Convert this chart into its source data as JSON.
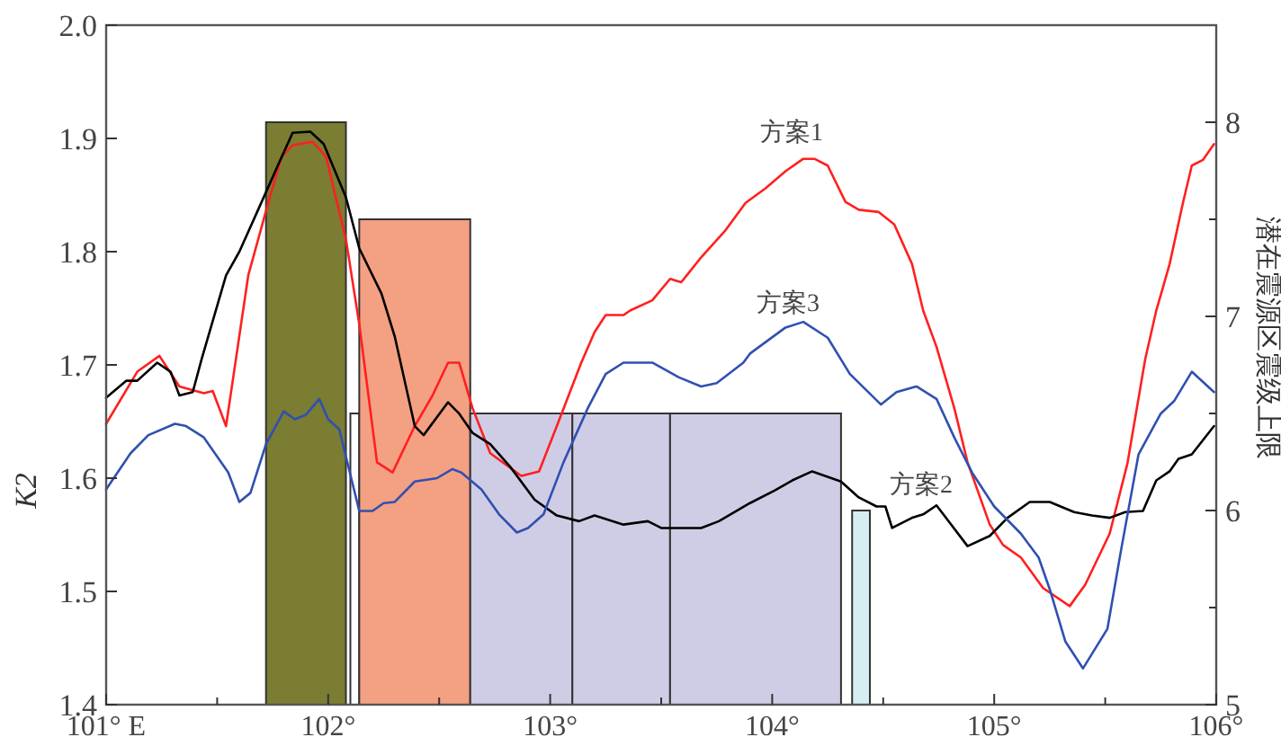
{
  "chart_data": {
    "type": "line",
    "ylabel": "K2",
    "y2label": "潜在震源区震级上限",
    "xlim": [
      101,
      106
    ],
    "xticks": [
      {
        "value": 101,
        "label": "101° E"
      },
      {
        "value": 101.5,
        "label": null
      },
      {
        "value": 102,
        "label": "102°"
      },
      {
        "value": 102.5,
        "label": null
      },
      {
        "value": 103,
        "label": "103°"
      },
      {
        "value": 103.5,
        "label": null
      },
      {
        "value": 104,
        "label": "104°"
      },
      {
        "value": 104.5,
        "label": null
      },
      {
        "value": 105,
        "label": "105°"
      },
      {
        "value": 105.5,
        "label": null
      },
      {
        "value": 106,
        "label": "106°"
      }
    ],
    "ylim": [
      1.4,
      2.0
    ],
    "yticks": [
      {
        "value": 1.4,
        "label": "1.4"
      },
      {
        "value": 1.5,
        "label": "1.5"
      },
      {
        "value": 1.6,
        "label": "1.6"
      },
      {
        "value": 1.7,
        "label": "1.7"
      },
      {
        "value": 1.8,
        "label": "1.8"
      },
      {
        "value": 1.9,
        "label": "1.9"
      },
      {
        "value": 2.0,
        "label": "2.0"
      }
    ],
    "y2lim": [
      5,
      8.5
    ],
    "y2ticks": [
      5,
      {
        "value": 5.5,
        "label": null
      },
      6,
      {
        "value": 6.5,
        "label": null
      },
      7,
      {
        "value": 7.5,
        "label": null
      },
      8
    ],
    "series": [
      {
        "type": "histogram",
        "axis": "y2",
        "bins": [
          101.72,
          102.08,
          102.1,
          102.14,
          102.64,
          103.1,
          103.54,
          104.31,
          104.36,
          104.44
        ],
        "values": [
          8.0,
          null,
          6.5,
          7.5,
          6.5,
          6.5,
          6.5,
          null,
          6.0
        ],
        "colors": [
          "#7a7d32",
          null,
          "#ffffff",
          "#f4a083",
          "#cfcde6",
          "#cfcde6",
          "#cfcde6",
          null,
          "#d6eef2"
        ]
      },
      {
        "name": "方案1",
        "color": "#ff2020",
        "x": [
          101.0,
          101.14,
          101.24,
          101.33,
          101.44,
          101.48,
          101.54,
          101.64,
          101.72,
          101.79,
          101.84,
          101.93,
          101.99,
          102.08,
          102.14,
          102.22,
          102.29,
          102.39,
          102.47,
          102.54,
          102.59,
          102.65,
          102.73,
          102.87,
          102.95,
          103.03,
          103.14,
          103.2,
          103.25,
          103.33,
          103.36,
          103.46,
          103.54,
          103.59,
          103.68,
          103.79,
          103.88,
          103.97,
          104.06,
          104.14,
          104.19,
          104.25,
          104.33,
          104.39,
          104.48,
          104.55,
          104.63,
          104.68,
          104.74,
          104.82,
          104.88,
          104.98,
          105.04,
          105.12,
          105.22,
          105.34,
          105.41,
          105.52,
          105.6,
          105.68,
          105.73,
          105.79,
          105.85,
          105.89,
          105.94,
          105.99
        ],
        "values": [
          1.648,
          1.694,
          1.708,
          1.681,
          1.675,
          1.677,
          1.646,
          1.779,
          1.836,
          1.884,
          1.894,
          1.897,
          1.884,
          1.811,
          1.736,
          1.614,
          1.605,
          1.646,
          1.673,
          1.702,
          1.702,
          1.662,
          1.622,
          1.602,
          1.606,
          1.646,
          1.702,
          1.729,
          1.744,
          1.744,
          1.748,
          1.757,
          1.776,
          1.773,
          1.795,
          1.819,
          1.843,
          1.856,
          1.871,
          1.882,
          1.882,
          1.876,
          1.844,
          1.837,
          1.835,
          1.824,
          1.789,
          1.748,
          1.716,
          1.662,
          1.614,
          1.559,
          1.541,
          1.53,
          1.503,
          1.487,
          1.506,
          1.551,
          1.613,
          1.705,
          1.748,
          1.789,
          1.843,
          1.876,
          1.881,
          1.895
        ]
      },
      {
        "name": "方案2",
        "color": "#000000",
        "x": [
          101.0,
          101.09,
          101.14,
          101.23,
          101.29,
          101.33,
          101.39,
          101.43,
          101.54,
          101.6,
          101.68,
          101.78,
          101.84,
          101.92,
          101.98,
          102.08,
          102.14,
          102.24,
          102.3,
          102.39,
          102.43,
          102.54,
          102.59,
          102.65,
          102.73,
          102.82,
          102.93,
          103.03,
          103.13,
          103.2,
          103.33,
          103.44,
          103.5,
          103.68,
          103.76,
          103.9,
          104.01,
          104.09,
          104.18,
          104.31,
          104.39,
          104.47,
          104.51,
          104.54,
          104.63,
          104.68,
          104.74,
          104.88,
          104.98,
          105.06,
          105.16,
          105.25,
          105.36,
          105.44,
          105.52,
          105.59,
          105.67,
          105.73,
          105.79,
          105.83,
          105.89,
          105.99
        ],
        "values": [
          1.671,
          1.686,
          1.686,
          1.702,
          1.694,
          1.673,
          1.676,
          1.705,
          1.779,
          1.8,
          1.835,
          1.879,
          1.905,
          1.906,
          1.895,
          1.848,
          1.803,
          1.763,
          1.725,
          1.646,
          1.638,
          1.667,
          1.657,
          1.64,
          1.63,
          1.61,
          1.581,
          1.567,
          1.562,
          1.567,
          1.559,
          1.562,
          1.556,
          1.556,
          1.562,
          1.578,
          1.589,
          1.598,
          1.606,
          1.597,
          1.583,
          1.575,
          1.575,
          1.556,
          1.565,
          1.568,
          1.576,
          1.54,
          1.549,
          1.565,
          1.579,
          1.579,
          1.57,
          1.567,
          1.565,
          1.57,
          1.571,
          1.598,
          1.606,
          1.617,
          1.621,
          1.646
        ]
      },
      {
        "name": "方案3",
        "color": "#3050b0",
        "x": [
          101.0,
          101.11,
          101.19,
          101.31,
          101.36,
          101.44,
          101.55,
          101.6,
          101.65,
          101.72,
          101.8,
          101.85,
          101.9,
          101.96,
          102.0,
          102.05,
          102.14,
          102.2,
          102.25,
          102.3,
          102.39,
          102.49,
          102.56,
          102.6,
          102.69,
          102.77,
          102.85,
          102.9,
          102.97,
          103.06,
          103.17,
          103.25,
          103.33,
          103.46,
          103.58,
          103.68,
          103.75,
          103.87,
          103.9,
          104.06,
          104.14,
          104.25,
          104.35,
          104.49,
          104.56,
          104.65,
          104.74,
          104.82,
          104.9,
          105.0,
          105.12,
          105.2,
          105.25,
          105.32,
          105.4,
          105.51,
          105.57,
          105.65,
          105.75,
          105.81,
          105.89,
          105.99
        ],
        "values": [
          1.59,
          1.622,
          1.638,
          1.648,
          1.646,
          1.636,
          1.605,
          1.579,
          1.587,
          1.63,
          1.659,
          1.652,
          1.656,
          1.67,
          1.652,
          1.643,
          1.571,
          1.571,
          1.578,
          1.579,
          1.597,
          1.6,
          1.608,
          1.605,
          1.59,
          1.568,
          1.552,
          1.556,
          1.568,
          1.614,
          1.662,
          1.692,
          1.702,
          1.702,
          1.689,
          1.681,
          1.684,
          1.702,
          1.71,
          1.733,
          1.738,
          1.724,
          1.692,
          1.665,
          1.676,
          1.681,
          1.67,
          1.636,
          1.605,
          1.575,
          1.551,
          1.53,
          1.502,
          1.456,
          1.432,
          1.467,
          1.535,
          1.621,
          1.657,
          1.668,
          1.694,
          1.676
        ]
      }
    ]
  }
}
